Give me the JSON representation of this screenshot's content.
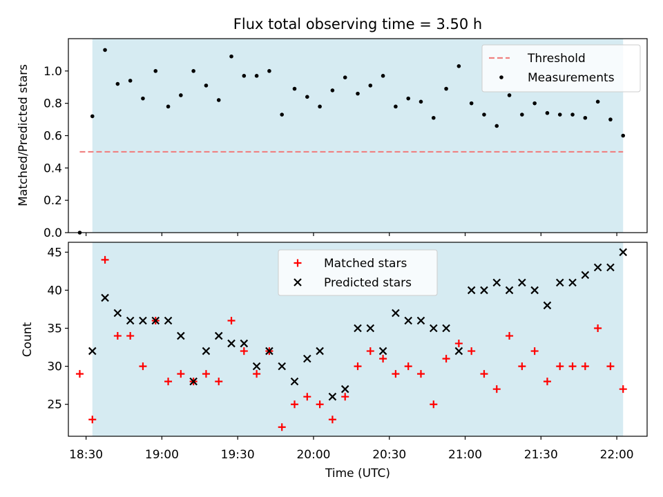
{
  "chart_data": {
    "type": "scatter",
    "title": "Flux total observing time = 3.50 h",
    "xlabel": "Time (UTC)",
    "x_tick_labels": [
      "18:30",
      "19:00",
      "19:30",
      "20:00",
      "20:30",
      "21:00",
      "21:30",
      "22:00"
    ],
    "x_ticks": [
      "18:30",
      "19:00",
      "19:30",
      "20:00",
      "20:30",
      "21:00",
      "21:30",
      "22:00"
    ],
    "xlim": [
      "18:23",
      "22:12"
    ],
    "shaded_span": {
      "start": "18:32:30",
      "end": "22:02:30",
      "color": "#add8e6"
    },
    "grid": false,
    "panels": [
      {
        "ylabel": "Matched/Predicted stars",
        "ylim": [
          0,
          1.2
        ],
        "y_tick_labels": [
          "0.0",
          "0.2",
          "0.4",
          "0.6",
          "0.8",
          "1.0"
        ],
        "legend_position": "upper right",
        "threshold": {
          "name": "Threshold",
          "value": 0.5,
          "x_start": "18:27:30",
          "x_end": "22:02:30",
          "color": "#f08080",
          "style": "dashed"
        },
        "series": [
          {
            "name": "Measurements",
            "marker": "dot",
            "color": "#000000",
            "x": [
              "18:27:30",
              "18:32:30",
              "18:37:30",
              "18:42:30",
              "18:47:30",
              "18:52:30",
              "18:57:30",
              "19:02:30",
              "19:07:30",
              "19:12:30",
              "19:17:30",
              "19:22:30",
              "19:27:30",
              "19:32:30",
              "19:37:30",
              "19:42:30",
              "19:47:30",
              "19:52:30",
              "19:57:30",
              "20:02:30",
              "20:07:30",
              "20:12:30",
              "20:17:30",
              "20:22:30",
              "20:27:30",
              "20:32:30",
              "20:37:30",
              "20:42:30",
              "20:47:30",
              "20:52:30",
              "20:57:30",
              "21:02:30",
              "21:07:30",
              "21:12:30",
              "21:17:30",
              "21:22:30",
              "21:27:30",
              "21:32:30",
              "21:37:30",
              "21:42:30",
              "21:47:30",
              "21:52:30",
              "21:57:30",
              "22:02:30"
            ],
            "y": [
              0.0,
              0.72,
              1.13,
              0.92,
              0.94,
              0.83,
              1.0,
              0.78,
              0.85,
              1.0,
              0.91,
              0.82,
              1.09,
              0.97,
              0.97,
              1.0,
              0.73,
              0.89,
              0.84,
              0.78,
              0.88,
              0.96,
              0.86,
              0.91,
              0.97,
              0.78,
              0.83,
              0.81,
              0.71,
              0.89,
              1.03,
              0.8,
              0.73,
              0.66,
              0.85,
              0.73,
              0.8,
              0.74,
              0.73,
              0.73,
              0.71,
              0.81,
              0.7,
              0.6
            ]
          }
        ]
      },
      {
        "ylabel": "Count",
        "ylim": [
          20.8,
          46.3
        ],
        "y_tick_labels": [
          "25",
          "30",
          "35",
          "40",
          "45"
        ],
        "legend_position": "upper center",
        "series": [
          {
            "name": "Matched stars",
            "marker": "plus",
            "color": "#ff0000",
            "x": [
              "18:27:30",
              "18:32:30",
              "18:37:30",
              "18:42:30",
              "18:47:30",
              "18:52:30",
              "18:57:30",
              "19:02:30",
              "19:07:30",
              "19:12:30",
              "19:17:30",
              "19:22:30",
              "19:27:30",
              "19:32:30",
              "19:37:30",
              "19:42:30",
              "19:47:30",
              "19:52:30",
              "19:57:30",
              "20:02:30",
              "20:07:30",
              "20:12:30",
              "20:17:30",
              "20:22:30",
              "20:27:30",
              "20:32:30",
              "20:37:30",
              "20:42:30",
              "20:47:30",
              "20:52:30",
              "20:57:30",
              "21:02:30",
              "21:07:30",
              "21:12:30",
              "21:17:30",
              "21:22:30",
              "21:27:30",
              "21:32:30",
              "21:37:30",
              "21:42:30",
              "21:47:30",
              "21:52:30",
              "21:57:30",
              "22:02:30"
            ],
            "y": [
              29,
              23,
              44,
              34,
              34,
              30,
              36,
              28,
              29,
              28,
              29,
              28,
              36,
              32,
              29,
              32,
              22,
              25,
              26,
              25,
              23,
              26,
              30,
              32,
              31,
              29,
              30,
              29,
              25,
              31,
              33,
              32,
              29,
              27,
              34,
              30,
              32,
              28,
              30,
              30,
              30,
              35,
              30,
              27
            ]
          },
          {
            "name": "Predicted stars",
            "marker": "x",
            "color": "#000000",
            "x": [
              "18:32:30",
              "18:37:30",
              "18:42:30",
              "18:47:30",
              "18:52:30",
              "18:57:30",
              "19:02:30",
              "19:07:30",
              "19:12:30",
              "19:17:30",
              "19:22:30",
              "19:27:30",
              "19:32:30",
              "19:37:30",
              "19:42:30",
              "19:47:30",
              "19:52:30",
              "19:57:30",
              "20:02:30",
              "20:07:30",
              "20:12:30",
              "20:17:30",
              "20:22:30",
              "20:27:30",
              "20:32:30",
              "20:37:30",
              "20:42:30",
              "20:47:30",
              "20:52:30",
              "20:57:30",
              "21:02:30",
              "21:07:30",
              "21:12:30",
              "21:17:30",
              "21:22:30",
              "21:27:30",
              "21:32:30",
              "21:37:30",
              "21:42:30",
              "21:47:30",
              "21:52:30",
              "21:57:30",
              "22:02:30"
            ],
            "y": [
              32,
              39,
              37,
              36,
              36,
              36,
              36,
              34,
              28,
              32,
              34,
              33,
              33,
              30,
              32,
              30,
              28,
              31,
              32,
              26,
              27,
              35,
              35,
              32,
              37,
              36,
              36,
              35,
              35,
              32,
              40,
              40,
              41,
              40,
              41,
              40,
              38,
              41,
              41,
              42,
              43,
              43,
              45
            ]
          }
        ]
      }
    ]
  }
}
